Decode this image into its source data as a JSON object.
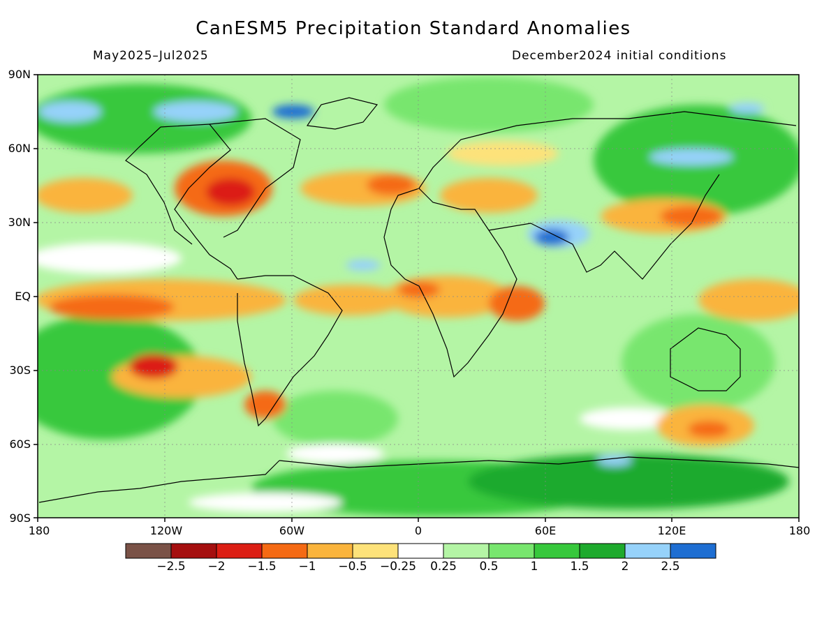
{
  "title": "CanESM5 Precipitation Standard Anomalies",
  "subtitle_left": "May2025–Jul2025",
  "subtitle_right": "December2024 initial conditions",
  "lat_labels": [
    "90N",
    "60N",
    "30N",
    "EQ",
    "30S",
    "60S",
    "90S"
  ],
  "lon_labels": [
    "180",
    "120W",
    "60W",
    "0",
    "60E",
    "120E",
    "180"
  ],
  "colorbar": {
    "colors": [
      "#7a5247",
      "#a50f0f",
      "#dc1e14",
      "#f56a14",
      "#fab43c",
      "#fde27a",
      "#ffffff",
      "#b4f5a5",
      "#78e66e",
      "#37c83c",
      "#1eaa2d",
      "#96d2fa",
      "#1e6ed2"
    ],
    "labels": [
      "−2.5",
      "−2",
      "−1.5",
      "−1",
      "−0.5",
      "−0.25",
      "0.25",
      "0.5",
      "1",
      "1.5",
      "2",
      "2.5"
    ]
  },
  "colors": {
    "land_outline": "#000000",
    "background": "#ffffff"
  }
}
